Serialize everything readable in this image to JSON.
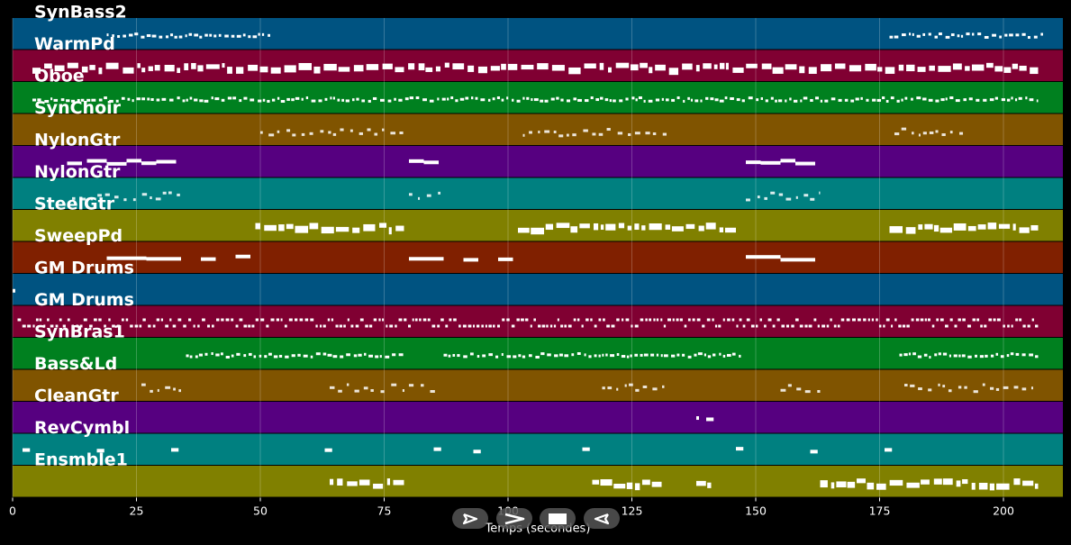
{
  "xlabel": "Temps (secondes)",
  "x_ticks": [
    0,
    25,
    50,
    75,
    100,
    125,
    150,
    175,
    200
  ],
  "xlim": [
    0,
    212
  ],
  "background_color": "#000000",
  "note_color": "#ffffff",
  "grid": true,
  "tracks": [
    {
      "name": "SynBass2",
      "color": "#005381",
      "style": "dense",
      "notes": [
        [
          19,
          52
        ],
        [
          177,
          208
        ]
      ]
    },
    {
      "name": "WarmPd",
      "color": "#800032",
      "style": "thick",
      "notes": [
        [
          4,
          207
        ]
      ]
    },
    {
      "name": "Oboe",
      "color": "#00801f",
      "style": "dense",
      "notes": [
        [
          4,
          207
        ]
      ]
    },
    {
      "name": "SynChoir",
      "color": "#805400",
      "style": "sparse",
      "notes": [
        [
          50,
          79
        ],
        [
          103,
          132
        ],
        [
          178,
          193
        ]
      ]
    },
    {
      "name": "NylonGtr",
      "color": "#560080",
      "style": "long",
      "notes": [
        [
          11,
          14
        ],
        [
          15,
          19
        ],
        [
          19,
          23
        ],
        [
          23,
          26
        ],
        [
          26,
          29
        ],
        [
          29,
          33
        ],
        [
          80,
          83
        ],
        [
          83,
          86
        ],
        [
          148,
          151
        ],
        [
          151,
          155
        ],
        [
          155,
          158
        ],
        [
          158,
          162
        ]
      ]
    },
    {
      "name": "NylonGtr",
      "color": "#008080",
      "style": "sparse",
      "notes": [
        [
          12,
          34
        ],
        [
          80,
          87
        ],
        [
          148,
          163
        ]
      ]
    },
    {
      "name": "SteelGtr",
      "color": "#808000",
      "style": "thick",
      "notes": [
        [
          49,
          79
        ],
        [
          102,
          146
        ],
        [
          177,
          207
        ]
      ]
    },
    {
      "name": "SweepPd",
      "color": "#802000",
      "style": "long",
      "notes": [
        [
          19,
          27
        ],
        [
          27,
          34
        ],
        [
          38,
          41
        ],
        [
          45,
          48
        ],
        [
          80,
          87
        ],
        [
          91,
          94
        ],
        [
          98,
          101
        ],
        [
          148,
          155
        ],
        [
          155,
          162
        ]
      ]
    },
    {
      "name": "GM Drums",
      "color": "#005381",
      "style": "dot",
      "notes": [
        [
          0,
          0.5
        ]
      ]
    },
    {
      "name": "GM Drums",
      "color": "#800032",
      "style": "drums",
      "notes": [
        [
          1,
          207
        ]
      ]
    },
    {
      "name": "SynBras1",
      "color": "#00801f",
      "style": "dense",
      "notes": [
        [
          35,
          79
        ],
        [
          87,
          147
        ],
        [
          179,
          207
        ]
      ]
    },
    {
      "name": "Bass&Ld",
      "color": "#805400",
      "style": "sparse",
      "notes": [
        [
          26,
          34
        ],
        [
          64,
          86
        ],
        [
          119,
          132
        ],
        [
          155,
          163
        ],
        [
          180,
          206
        ]
      ]
    },
    {
      "name": "CleanGtr",
      "color": "#560080",
      "style": "long",
      "notes": [
        [
          138,
          138.3
        ],
        [
          140,
          141.5
        ]
      ]
    },
    {
      "name": "RevCymbl",
      "color": "#008080",
      "style": "long",
      "notes": [
        [
          2,
          3.5
        ],
        [
          17,
          18.5
        ],
        [
          32,
          33.5
        ],
        [
          63,
          64.5
        ],
        [
          85,
          86.5
        ],
        [
          93,
          94.5
        ],
        [
          115,
          116.5
        ],
        [
          146,
          147.5
        ],
        [
          161,
          162.5
        ],
        [
          176,
          177.5
        ]
      ]
    },
    {
      "name": "Ensmble1",
      "color": "#808000",
      "style": "thick",
      "notes": [
        [
          64,
          79
        ],
        [
          117,
          131
        ],
        [
          138,
          141
        ],
        [
          163,
          207
        ]
      ]
    }
  ],
  "transport": {
    "play_icon": "play-outline-icon",
    "next_icon": "chevron-right-icon",
    "stop_icon": "stop-square-icon",
    "prev_icon": "rewind-outline-icon"
  }
}
